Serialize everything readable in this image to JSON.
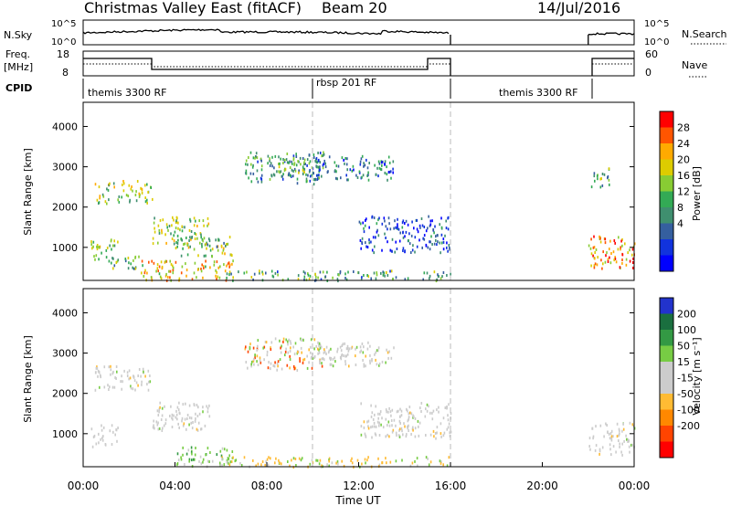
{
  "header": {
    "title": "Christmas Valley East (fitACF)",
    "beam": "Beam 20",
    "date": "14/Jul/2016"
  },
  "summary_panels": {
    "nsky": {
      "label": "N.Sky",
      "ticks": [
        "10^5",
        "10^0"
      ],
      "right_label": "N.Search",
      "right_ticks": [
        "10^5",
        "10^0"
      ]
    },
    "freq": {
      "label": "Freq.",
      "unit": "[MHz]",
      "ticks": [
        "18",
        "8"
      ],
      "right_label": "Nave",
      "right_ticks": [
        "60",
        "0"
      ]
    },
    "cpid": {
      "label": "CPID",
      "segments": [
        {
          "start": 0,
          "end": 10,
          "label": "themis 3300 RF"
        },
        {
          "start": 10,
          "end": 16,
          "label": "rbsp 201 RF"
        },
        {
          "start": 16,
          "end": 22,
          "label": "themis 3300 RF"
        }
      ]
    }
  },
  "chart_data": [
    {
      "type": "heatmap",
      "name": "power",
      "ylabel": "Slant Range [km]",
      "yticks": [
        1000,
        2000,
        3000,
        4000
      ],
      "ylim": [
        180,
        4600
      ],
      "xlim": [
        0,
        24
      ],
      "colorbar": {
        "label": "Power [dB]",
        "ticks": [
          "28",
          "24",
          "20",
          "16",
          "12",
          "8",
          "4"
        ],
        "colors": [
          "#ff0000",
          "#ff5500",
          "#ffaa00",
          "#ddcc00",
          "#88cc33",
          "#33aa55",
          "#3f8f6f",
          "#355f9f",
          "#1133dd",
          "#0000ff"
        ]
      },
      "echo_regions": [
        {
          "t0": 0.5,
          "t1": 3.0,
          "r0": 2100,
          "r1": 2700,
          "level": 0.55
        },
        {
          "t0": 0.3,
          "t1": 1.5,
          "r0": 700,
          "r1": 1250,
          "level": 0.55
        },
        {
          "t0": 1.0,
          "t1": 2.5,
          "r0": 500,
          "r1": 800,
          "level": 0.45
        },
        {
          "t0": 3.0,
          "t1": 5.5,
          "r0": 1100,
          "r1": 1800,
          "level": 0.55
        },
        {
          "t0": 4.0,
          "t1": 6.5,
          "r0": 800,
          "r1": 1300,
          "level": 0.5
        },
        {
          "t0": 2.5,
          "t1": 6.5,
          "r0": 200,
          "r1": 700,
          "level": 0.7
        },
        {
          "t0": 7.0,
          "t1": 10.5,
          "r0": 2600,
          "r1": 3400,
          "level": 0.35
        },
        {
          "t0": 8.0,
          "t1": 10.0,
          "r0": 2800,
          "r1": 3300,
          "level": 0.45
        },
        {
          "t0": 10.0,
          "t1": 13.5,
          "r0": 2700,
          "r1": 3300,
          "level": 0.25
        },
        {
          "t0": 12.0,
          "t1": 16.0,
          "r0": 900,
          "r1": 1800,
          "level": 0.2
        },
        {
          "t0": 6.0,
          "t1": 16.0,
          "r0": 200,
          "r1": 450,
          "level": 0.4
        },
        {
          "t0": 22.0,
          "t1": 24.0,
          "r0": 500,
          "r1": 1300,
          "level": 0.8
        },
        {
          "t0": 22.0,
          "t1": 23.0,
          "r0": 2500,
          "r1": 3000,
          "level": 0.4
        }
      ]
    },
    {
      "type": "heatmap",
      "name": "velocity",
      "ylabel": "Slant Range [km]",
      "yticks": [
        1000,
        2000,
        3000,
        4000
      ],
      "ylim": [
        180,
        4600
      ],
      "xlim": [
        0,
        24
      ],
      "xticks": [
        "00:00",
        "04:00",
        "08:00",
        "12:00",
        "16:00",
        "20:00",
        "00:00"
      ],
      "xlabel": "Time UT",
      "colorbar": {
        "label": "Velocity [m s⁻¹]",
        "ticks": [
          "200",
          "100",
          "50",
          "15",
          "-15",
          "-50",
          "-100",
          "-200"
        ],
        "colors": [
          "#2233cc",
          "#1a6f3f",
          "#339944",
          "#77cc44",
          "#cccccc",
          "#cccccc",
          "#ffbb33",
          "#ff8800",
          "#ff4400",
          "#ff0000"
        ]
      },
      "echo_regions": [
        {
          "t0": 0.5,
          "t1": 3.0,
          "r0": 2100,
          "r1": 2700,
          "vel": "gray"
        },
        {
          "t0": 0.3,
          "t1": 1.5,
          "r0": 700,
          "r1": 1250,
          "vel": "gray"
        },
        {
          "t0": 3.0,
          "t1": 5.5,
          "r0": 1100,
          "r1": 1800,
          "vel": "gray"
        },
        {
          "t0": 4.0,
          "t1": 6.5,
          "r0": 200,
          "r1": 700,
          "vel": "green"
        },
        {
          "t0": 7.0,
          "t1": 10.5,
          "r0": 2600,
          "r1": 3400,
          "vel": "mixed"
        },
        {
          "t0": 10.0,
          "t1": 13.5,
          "r0": 2700,
          "r1": 3300,
          "vel": "gray"
        },
        {
          "t0": 12.0,
          "t1": 16.0,
          "r0": 900,
          "r1": 1800,
          "vel": "gray"
        },
        {
          "t0": 6.0,
          "t1": 16.0,
          "r0": 200,
          "r1": 450,
          "vel": "orange"
        },
        {
          "t0": 22.0,
          "t1": 24.0,
          "r0": 500,
          "r1": 1300,
          "vel": "gray"
        }
      ]
    }
  ]
}
